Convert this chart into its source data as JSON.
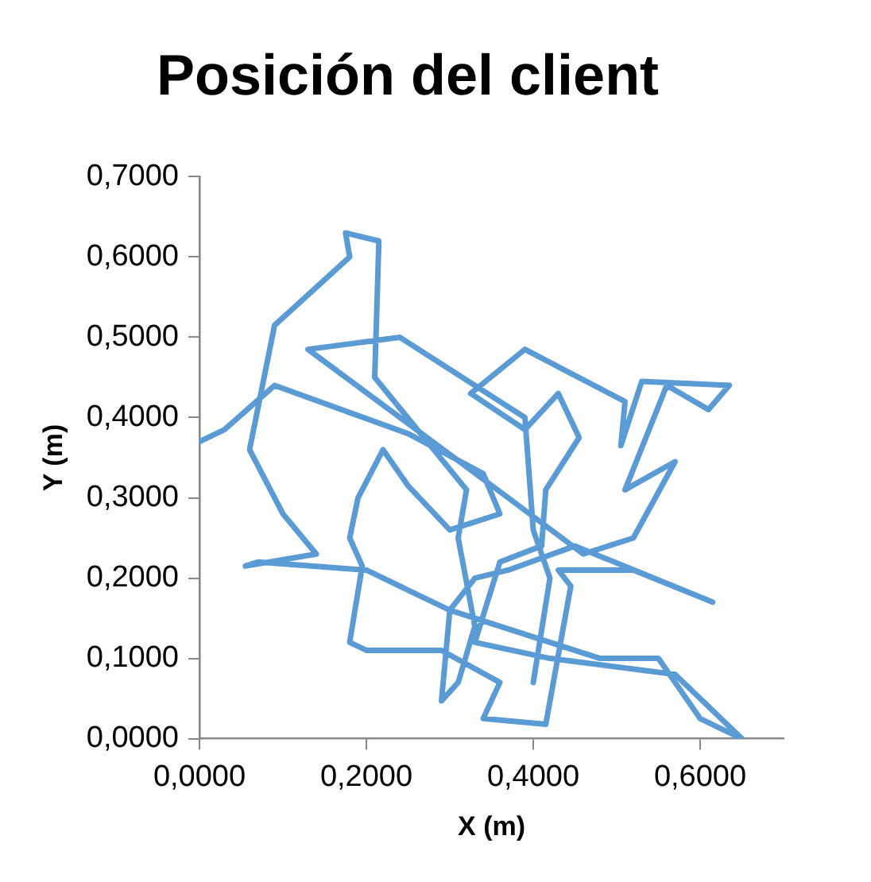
{
  "chart_data": {
    "type": "line",
    "title": "Posición del client",
    "xlabel": "X (m)",
    "ylabel": "Y (m)",
    "xlim": [
      0,
      0.7
    ],
    "xticks": [
      {
        "value": 0,
        "label": "0,0000"
      },
      {
        "value": 0.2,
        "label": "0,2000"
      },
      {
        "value": 0.4,
        "label": "0,4000"
      },
      {
        "value": 0.6,
        "label": "0,6000"
      }
    ],
    "ylim": [
      0,
      0.7
    ],
    "yticks": [
      {
        "value": 0,
        "label": "0,0000"
      },
      {
        "value": 0.1,
        "label": "0,1000"
      },
      {
        "value": 0.2,
        "label": "0,2000"
      },
      {
        "value": 0.3,
        "label": "0,3000"
      },
      {
        "value": 0.4,
        "label": "0,4000"
      },
      {
        "value": 0.5,
        "label": "0,5000"
      },
      {
        "value": 0.6,
        "label": "0,6000"
      },
      {
        "value": 0.7,
        "label": "0,7000"
      }
    ],
    "grid": false,
    "legend": false,
    "marker": "none",
    "line_style": "solid",
    "series": [
      {
        "color": "#5b9bd5",
        "x": [
          0.0,
          0.03,
          0.09,
          0.25,
          0.34,
          0.36,
          0.3,
          0.25,
          0.22,
          0.19,
          0.18,
          0.195,
          0.18,
          0.2,
          0.29,
          0.36,
          0.34,
          0.415,
          0.445,
          0.43,
          0.52,
          0.615,
          0.45,
          0.37,
          0.33,
          0.3,
          0.29,
          0.31,
          0.33,
          0.31,
          0.32,
          0.21,
          0.215,
          0.175,
          0.18,
          0.09,
          0.06,
          0.1,
          0.14,
          0.055,
          0.07,
          0.2,
          0.3,
          0.48,
          0.55,
          0.6,
          0.65,
          0.57,
          0.42,
          0.33,
          0.36,
          0.41,
          0.415,
          0.455,
          0.43,
          0.39,
          0.325,
          0.39,
          0.445,
          0.51,
          0.505,
          0.53,
          0.635,
          0.61,
          0.56,
          0.51,
          0.57,
          0.52,
          0.46,
          0.37,
          0.13,
          0.24,
          0.39,
          0.4,
          0.42,
          0.4
        ],
        "values": [
          0.37,
          0.385,
          0.44,
          0.38,
          0.33,
          0.28,
          0.26,
          0.315,
          0.36,
          0.3,
          0.25,
          0.215,
          0.12,
          0.11,
          0.11,
          0.07,
          0.025,
          0.018,
          0.19,
          0.21,
          0.21,
          0.17,
          0.24,
          0.21,
          0.2,
          0.16,
          0.047,
          0.07,
          0.14,
          0.25,
          0.31,
          0.45,
          0.62,
          0.63,
          0.6,
          0.515,
          0.36,
          0.28,
          0.23,
          0.215,
          0.22,
          0.21,
          0.16,
          0.1,
          0.1,
          0.025,
          0.0,
          0.08,
          0.1,
          0.12,
          0.22,
          0.24,
          0.31,
          0.375,
          0.43,
          0.385,
          0.43,
          0.485,
          0.455,
          0.42,
          0.365,
          0.445,
          0.44,
          0.41,
          0.44,
          0.31,
          0.345,
          0.25,
          0.23,
          0.3,
          0.485,
          0.5,
          0.4,
          0.26,
          0.2,
          0.07
        ]
      }
    ]
  }
}
